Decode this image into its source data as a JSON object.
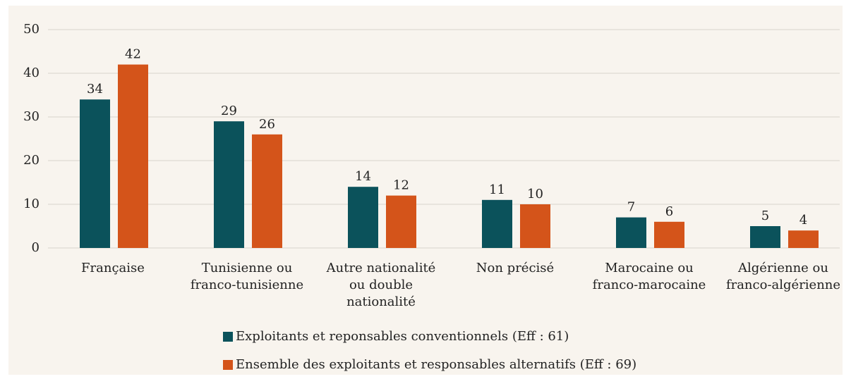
{
  "chart_data": {
    "type": "bar",
    "categories": [
      "Française",
      "Tunisienne ou\nfranco-tunisienne",
      "Autre nationalité\nou double\nnationalité",
      "Non précisé",
      "Marocaine ou\nfranco-marocaine",
      "Algérienne ou\nfranco-algérienne"
    ],
    "series": [
      {
        "name": "Exploitants et reponsables conventionnels (Eff : 61)",
        "color": "#0b525b",
        "values": [
          34,
          29,
          14,
          11,
          7,
          5
        ]
      },
      {
        "name": "Ensemble des exploitants et responsables alternatifs (Eff : 69)",
        "color": "#d4541a",
        "values": [
          42,
          26,
          12,
          10,
          6,
          4
        ]
      }
    ],
    "ylim": [
      0,
      50
    ],
    "yticks": [
      0,
      10,
      20,
      30,
      40,
      50
    ],
    "grid": true
  }
}
